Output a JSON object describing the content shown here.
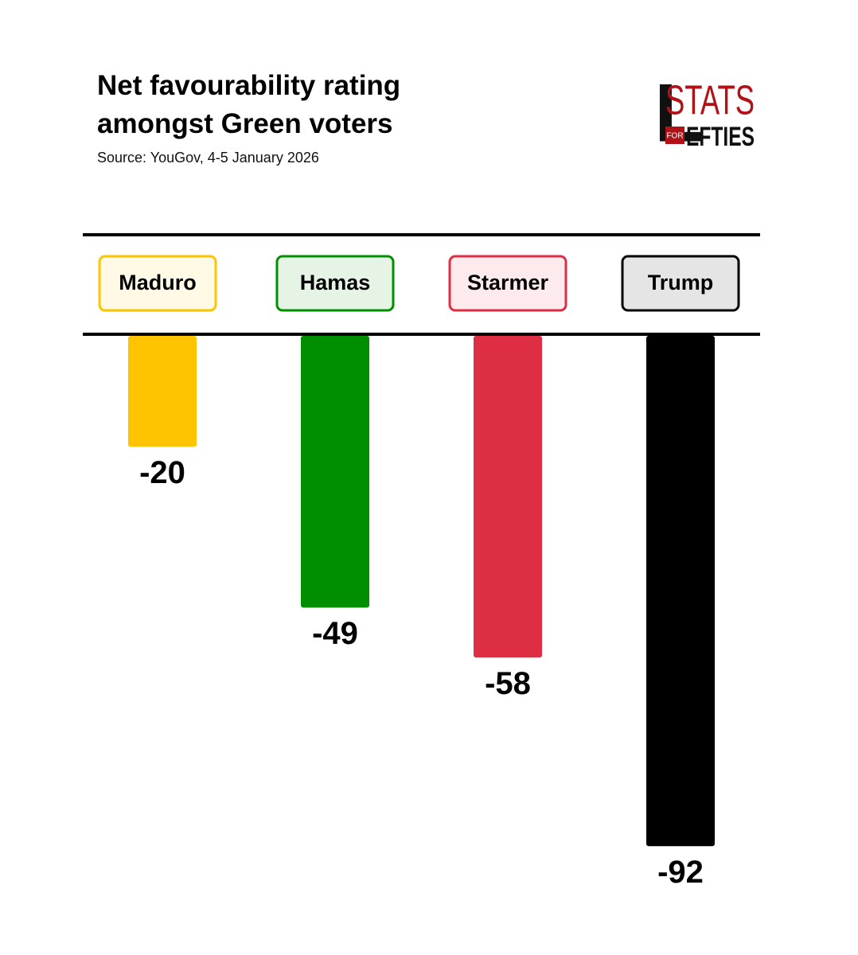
{
  "chart_data": {
    "type": "bar",
    "title": "Net favourability rating amongst Green voters",
    "subtitle": "Source: YouGov, 4-5 January 2026",
    "categories": [
      "Maduro",
      "Hamas",
      "Starmer",
      "Trump"
    ],
    "values": [
      -20,
      -49,
      -58,
      -92
    ],
    "colors": [
      "#ffc400",
      "#008f00",
      "#de2e44",
      "#000000"
    ]
  },
  "logo": {
    "letter": "L",
    "top": "STATS",
    "badge": "FOR",
    "bottom": "EFTIES"
  }
}
